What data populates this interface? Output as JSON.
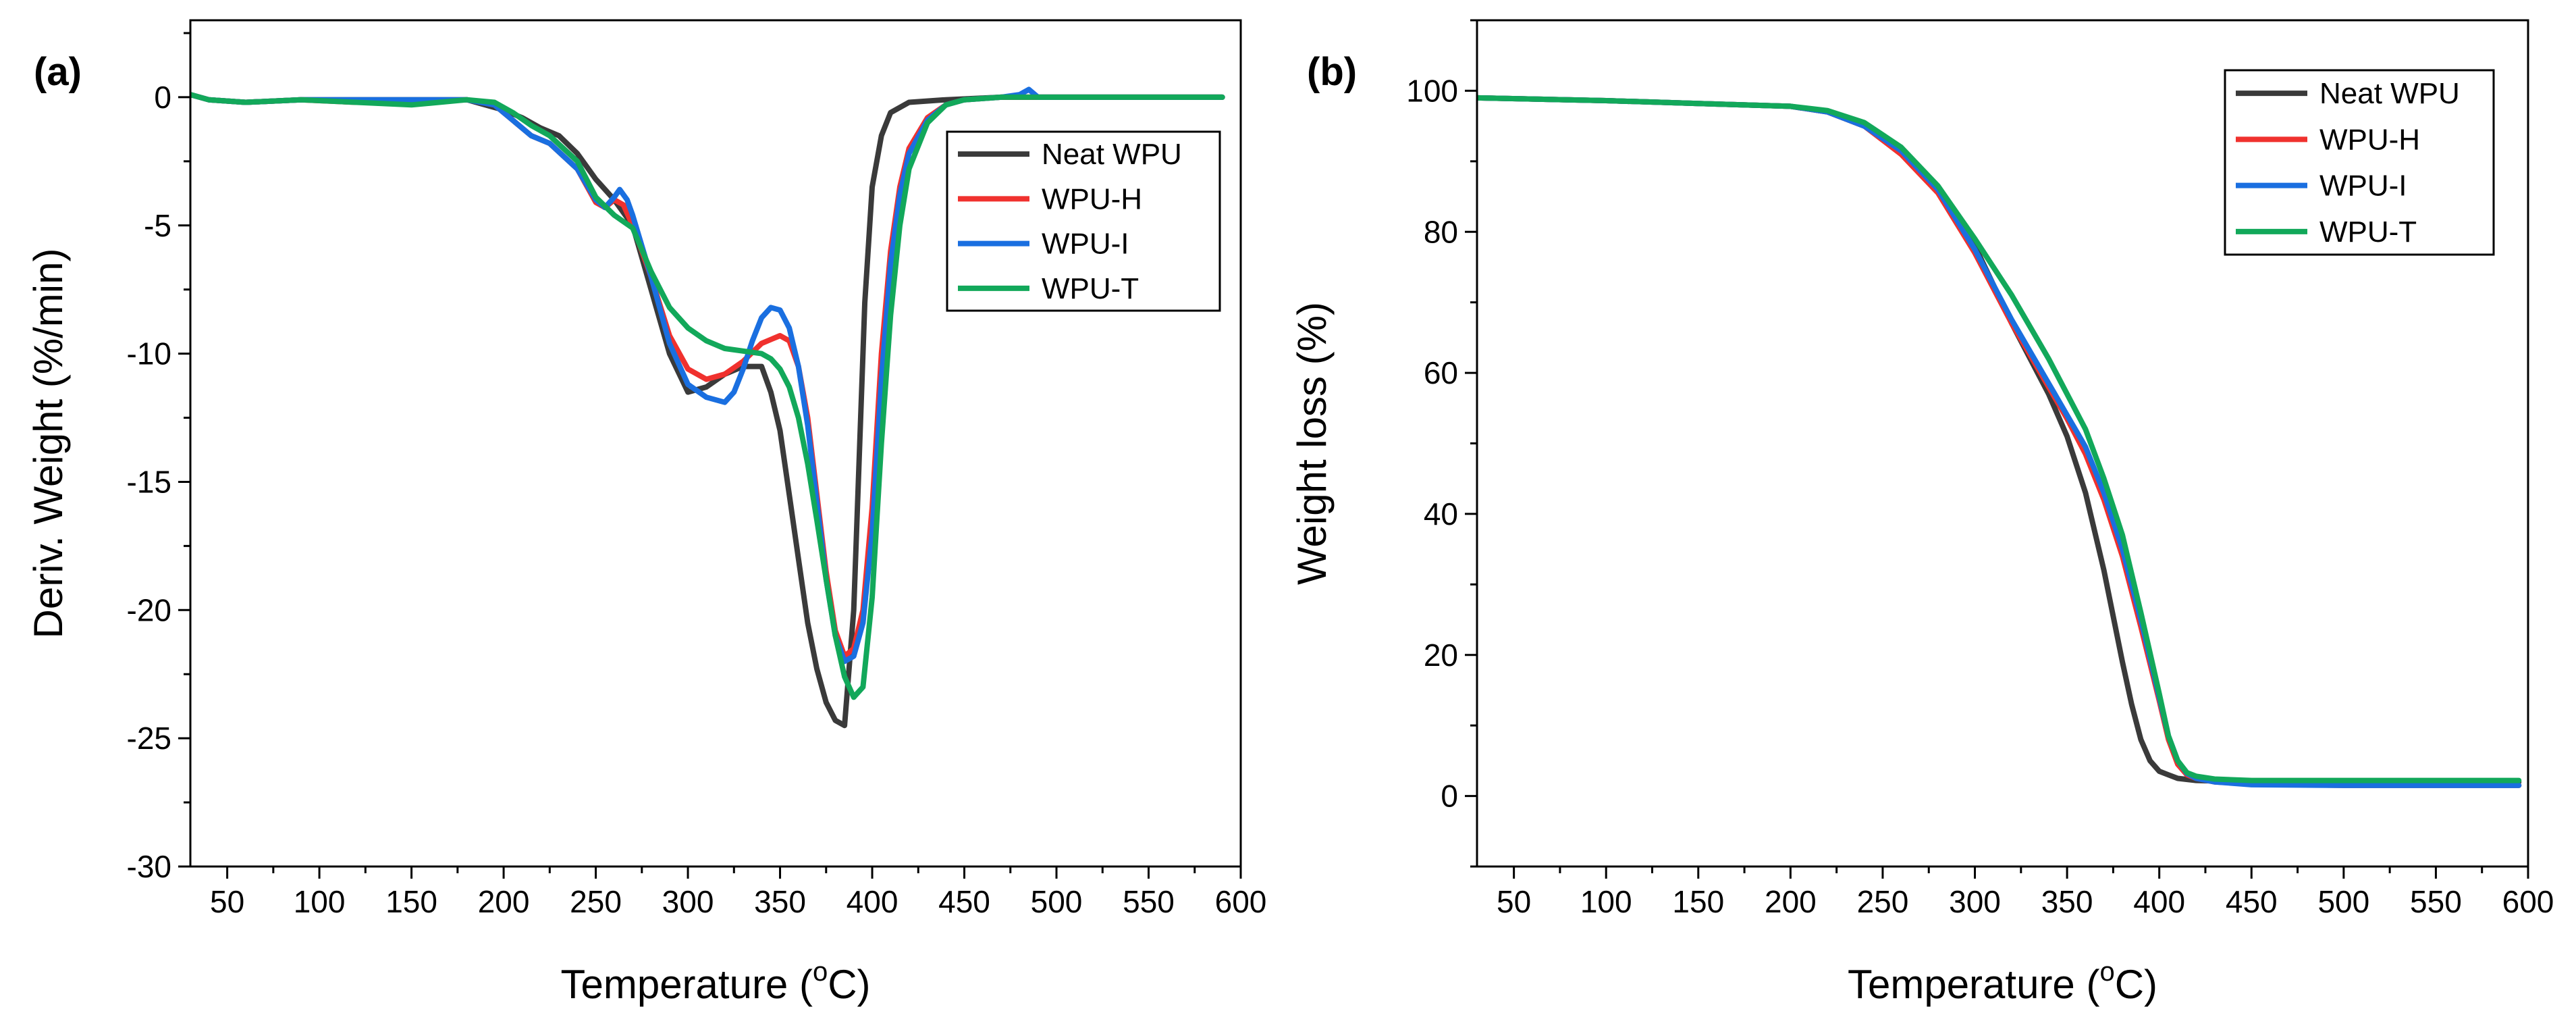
{
  "series_styles": [
    {
      "name": "Neat WPU",
      "color": "#3a3a3a"
    },
    {
      "name": "WPU-H",
      "color": "#f0312e"
    },
    {
      "name": "WPU-I",
      "color": "#1a6fe0"
    },
    {
      "name": "WPU-T",
      "color": "#12a85a"
    }
  ],
  "chart_data": [
    {
      "type": "line",
      "panel_label": "(a)",
      "title": "",
      "xlabel": "Temperature (°C)",
      "xlabel_parts": {
        "pre": "Temperature (",
        "sup": "o",
        "post": "C)"
      },
      "ylabel": "Deriv. Weight (%/min)",
      "xlim": [
        30,
        600
      ],
      "ylim": [
        -30,
        3
      ],
      "x_ticks": [
        50,
        100,
        150,
        200,
        250,
        300,
        350,
        400,
        450,
        500,
        550,
        600
      ],
      "y_ticks": [
        0,
        -5,
        -10,
        -15,
        -20,
        -25,
        -30
      ],
      "x_tick_labels": [
        "50",
        "100",
        "150",
        "200",
        "250",
        "300",
        "350",
        "400",
        "450",
        "500",
        "550",
        "600"
      ],
      "y_tick_labels": [
        "0",
        "-5",
        "-10",
        "-15",
        "-20",
        "-25",
        "-30"
      ],
      "legend_position": "top-right",
      "series": [
        {
          "name": "Neat WPU",
          "x": [
            30,
            40,
            60,
            90,
            120,
            150,
            180,
            200,
            210,
            220,
            230,
            240,
            250,
            260,
            270,
            280,
            290,
            300,
            310,
            320,
            330,
            340,
            345,
            350,
            355,
            360,
            365,
            370,
            375,
            380,
            385,
            390,
            393,
            396,
            400,
            405,
            410,
            420,
            440,
            470,
            500,
            550,
            590
          ],
          "y": [
            0.1,
            -0.1,
            -0.2,
            -0.1,
            -0.1,
            -0.1,
            -0.1,
            -0.5,
            -0.8,
            -1.2,
            -1.5,
            -2.2,
            -3.2,
            -4.0,
            -5.0,
            -7.5,
            -10,
            -11.5,
            -11.3,
            -10.8,
            -10.5,
            -10.5,
            -11.5,
            -13,
            -15.5,
            -18,
            -20.5,
            -22.3,
            -23.6,
            -24.3,
            -24.5,
            -20,
            -14,
            -8,
            -3.5,
            -1.5,
            -0.6,
            -0.2,
            -0.1,
            0,
            0,
            0,
            0
          ]
        },
        {
          "name": "WPU-H",
          "x": [
            30,
            40,
            60,
            90,
            120,
            150,
            180,
            195,
            205,
            215,
            225,
            240,
            250,
            255,
            260,
            265,
            270,
            280,
            290,
            300,
            310,
            320,
            330,
            340,
            350,
            355,
            360,
            365,
            370,
            375,
            380,
            385,
            390,
            395,
            400,
            405,
            410,
            415,
            420,
            430,
            440,
            450,
            470,
            500,
            550,
            590
          ],
          "y": [
            0.1,
            -0.1,
            -0.2,
            -0.1,
            -0.2,
            -0.2,
            -0.1,
            -0.3,
            -0.9,
            -1.5,
            -1.8,
            -2.8,
            -4.1,
            -4.3,
            -4.0,
            -4.2,
            -5.0,
            -7.0,
            -9.3,
            -10.6,
            -11.0,
            -10.8,
            -10.3,
            -9.6,
            -9.3,
            -9.5,
            -10.5,
            -12.5,
            -15.5,
            -18.5,
            -20.8,
            -21.8,
            -21.5,
            -20,
            -16,
            -10,
            -6,
            -3.5,
            -2,
            -0.8,
            -0.3,
            -0.1,
            0,
            0,
            0,
            0
          ]
        },
        {
          "name": "WPU-I",
          "x": [
            30,
            40,
            60,
            90,
            120,
            150,
            160,
            180,
            195,
            205,
            215,
            225,
            240,
            250,
            255,
            260,
            263,
            267,
            270,
            280,
            290,
            300,
            310,
            320,
            325,
            330,
            335,
            340,
            345,
            350,
            355,
            360,
            365,
            370,
            375,
            380,
            385,
            390,
            395,
            400,
            405,
            410,
            415,
            420,
            430,
            440,
            450,
            470,
            480,
            485,
            490,
            500,
            550,
            590
          ],
          "y": [
            0.1,
            -0.1,
            -0.2,
            -0.1,
            -0.1,
            -0.1,
            -0.1,
            -0.1,
            -0.3,
            -0.9,
            -1.5,
            -1.8,
            -2.8,
            -4.0,
            -4.3,
            -3.9,
            -3.6,
            -4.0,
            -4.6,
            -7.0,
            -9.6,
            -11.2,
            -11.7,
            -11.9,
            -11.5,
            -10.6,
            -9.5,
            -8.6,
            -8.2,
            -8.3,
            -9.0,
            -10.5,
            -12.8,
            -15.8,
            -18.8,
            -21.0,
            -22.0,
            -21.8,
            -20.5,
            -17,
            -11,
            -6.5,
            -3.8,
            -2.2,
            -0.9,
            -0.3,
            -0.1,
            0,
            0.1,
            0.3,
            0,
            0,
            0,
            0
          ]
        },
        {
          "name": "WPU-T",
          "x": [
            30,
            40,
            60,
            90,
            120,
            150,
            180,
            195,
            205,
            215,
            225,
            240,
            250,
            260,
            270,
            280,
            290,
            300,
            310,
            320,
            330,
            340,
            345,
            350,
            355,
            360,
            365,
            370,
            375,
            380,
            385,
            390,
            395,
            400,
            405,
            410,
            415,
            420,
            430,
            440,
            450,
            470,
            500,
            550,
            590
          ],
          "y": [
            0.1,
            -0.1,
            -0.2,
            -0.1,
            -0.2,
            -0.3,
            -0.1,
            -0.2,
            -0.6,
            -1.1,
            -1.5,
            -2.5,
            -3.9,
            -4.6,
            -5.1,
            -6.8,
            -8.2,
            -9.0,
            -9.5,
            -9.8,
            -9.9,
            -10.0,
            -10.2,
            -10.6,
            -11.3,
            -12.5,
            -14.3,
            -16.5,
            -18.8,
            -21.0,
            -22.6,
            -23.4,
            -23.0,
            -19.5,
            -13.5,
            -8.5,
            -5.0,
            -2.8,
            -1.0,
            -0.3,
            -0.1,
            0,
            0,
            0,
            0
          ]
        }
      ]
    },
    {
      "type": "line",
      "panel_label": "(b)",
      "title": "",
      "xlabel": "Temperature (°C)",
      "xlabel_parts": {
        "pre": "Temperature (",
        "sup": "o",
        "post": "C)"
      },
      "ylabel": "Weight loss (%)",
      "xlim": [
        30,
        600
      ],
      "ylim": [
        -10,
        110
      ],
      "x_ticks": [
        50,
        100,
        150,
        200,
        250,
        300,
        350,
        400,
        450,
        500,
        550,
        600
      ],
      "y_ticks": [
        0,
        20,
        40,
        60,
        80,
        100
      ],
      "x_tick_labels": [
        "50",
        "100",
        "150",
        "200",
        "250",
        "300",
        "350",
        "400",
        "450",
        "500",
        "550",
        "600"
      ],
      "y_tick_labels": [
        "0",
        "20",
        "40",
        "60",
        "80",
        "100"
      ],
      "legend_position": "top-right",
      "series": [
        {
          "name": "Neat WPU",
          "x": [
            30,
            100,
            150,
            200,
            220,
            240,
            260,
            280,
            300,
            320,
            340,
            350,
            360,
            370,
            380,
            385,
            390,
            395,
            400,
            405,
            410,
            420,
            450,
            500,
            550,
            595
          ],
          "y": [
            99,
            98.6,
            98.2,
            97.8,
            97,
            95,
            91.5,
            86,
            78,
            67,
            57,
            51,
            43,
            32,
            19,
            13,
            8,
            5,
            3.5,
            3,
            2.5,
            2.2,
            2,
            2,
            2,
            2
          ]
        },
        {
          "name": "WPU-H",
          "x": [
            30,
            100,
            150,
            200,
            220,
            240,
            260,
            280,
            300,
            320,
            340,
            350,
            360,
            370,
            380,
            390,
            400,
            405,
            410,
            415,
            420,
            430,
            450,
            500,
            550,
            595
          ],
          "y": [
            99,
            98.6,
            98.2,
            97.8,
            97,
            95,
            91,
            85.5,
            77,
            67,
            58,
            53.5,
            48.5,
            42,
            34,
            24,
            13.5,
            8,
            4.5,
            3,
            2.5,
            2,
            1.7,
            1.5,
            1.5,
            1.5
          ]
        },
        {
          "name": "WPU-I",
          "x": [
            30,
            100,
            150,
            200,
            220,
            240,
            260,
            280,
            300,
            320,
            340,
            350,
            360,
            370,
            380,
            390,
            400,
            405,
            410,
            415,
            420,
            430,
            450,
            500,
            550,
            595
          ],
          "y": [
            99,
            98.6,
            98.2,
            97.8,
            97,
            95,
            91.5,
            86,
            77.5,
            67.5,
            58.5,
            54,
            49.5,
            43,
            35,
            25,
            14,
            8.5,
            5,
            3.2,
            2.5,
            2,
            1.6,
            1.5,
            1.5,
            1.5
          ]
        },
        {
          "name": "WPU-T",
          "x": [
            30,
            100,
            150,
            200,
            220,
            240,
            260,
            280,
            300,
            320,
            340,
            350,
            360,
            370,
            380,
            390,
            400,
            405,
            410,
            415,
            420,
            430,
            450,
            500,
            550,
            595
          ],
          "y": [
            99,
            98.6,
            98.2,
            97.8,
            97.2,
            95.5,
            92,
            86.5,
            79,
            71,
            62,
            57,
            52,
            45,
            37,
            26,
            14.5,
            8.5,
            5,
            3.3,
            2.8,
            2.4,
            2.2,
            2.2,
            2.2,
            2.2
          ]
        }
      ]
    }
  ]
}
